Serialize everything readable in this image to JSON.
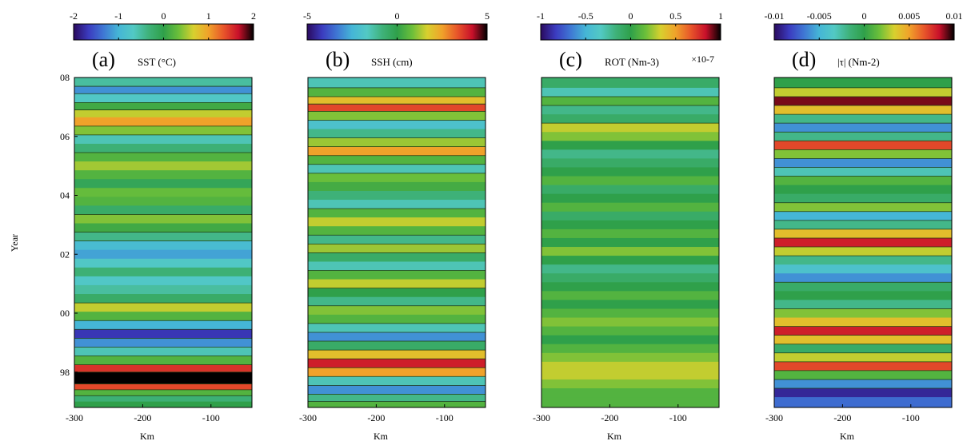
{
  "figure": {
    "ylabel": "Year",
    "xlabel": "Km"
  },
  "colormap": [
    "#2a0a5e",
    "#3b3bbf",
    "#3f78d4",
    "#45b6d6",
    "#52c9c4",
    "#3fb27a",
    "#2fa04a",
    "#6bbf3a",
    "#d8d02e",
    "#f0a22a",
    "#e8562a",
    "#c8102a",
    "#000000"
  ],
  "contour_color": "#1f3a12",
  "chart_data": [
    {
      "type": "heatmap",
      "panel_label": "(a)",
      "title": "SST (°C)",
      "colorbar": {
        "min": -2,
        "max": 2,
        "ticks": [
          "-2",
          "-1",
          "0",
          "1",
          "2"
        ],
        "tick_values": [
          -2,
          -1,
          0,
          1,
          2
        ],
        "exponent": ""
      },
      "xlim": [
        -300,
        -40
      ],
      "ylim": [
        1996.8,
        2008
      ],
      "x_ticks": [
        "-300",
        "-200",
        "-100"
      ],
      "x_tick_values": [
        -300,
        -200,
        -100
      ],
      "y_ticks": [
        "08",
        "06",
        "04",
        "02",
        "00",
        "98"
      ],
      "y_tick_values": [
        2008,
        2006,
        2004,
        2002,
        2000,
        1998
      ],
      "rows": [
        [
          2007.8,
          -0.5
        ],
        [
          2007.6,
          -1.2
        ],
        [
          2007.3,
          -0.7
        ],
        [
          2007.0,
          0.1
        ],
        [
          2006.8,
          0.6
        ],
        [
          2006.5,
          1.0
        ],
        [
          2006.2,
          0.4
        ],
        [
          2005.9,
          -0.6
        ],
        [
          2005.6,
          -0.3
        ],
        [
          2005.3,
          0.2
        ],
        [
          2005.0,
          0.5
        ],
        [
          2004.7,
          0.2
        ],
        [
          2004.4,
          -0.1
        ],
        [
          2004.1,
          0.3
        ],
        [
          2003.8,
          0.2
        ],
        [
          2003.5,
          -0.2
        ],
        [
          2003.2,
          0.4
        ],
        [
          2002.9,
          0.1
        ],
        [
          2002.6,
          -0.4
        ],
        [
          2002.3,
          -0.9
        ],
        [
          2002.0,
          -1.1
        ],
        [
          2001.7,
          -0.7
        ],
        [
          2001.4,
          -0.3
        ],
        [
          2001.1,
          -0.7
        ],
        [
          2000.8,
          -0.5
        ],
        [
          2000.5,
          -0.2
        ],
        [
          2000.2,
          0.6
        ],
        [
          1999.9,
          0.2
        ],
        [
          1999.6,
          -1.0
        ],
        [
          1999.3,
          -1.7
        ],
        [
          1999.0,
          -1.2
        ],
        [
          1998.7,
          -0.6
        ],
        [
          1998.4,
          0.2
        ],
        [
          1998.1,
          1.5
        ],
        [
          1997.9,
          2.3
        ],
        [
          1997.7,
          2.3
        ],
        [
          1997.5,
          1.4
        ],
        [
          1997.3,
          0.2
        ],
        [
          1997.1,
          -0.3
        ],
        [
          1996.9,
          0.0
        ]
      ]
    },
    {
      "type": "heatmap",
      "panel_label": "(b)",
      "title": "SSH (cm)",
      "colorbar": {
        "min": -5,
        "max": 5,
        "ticks": [
          "-5",
          "0",
          "5"
        ],
        "tick_values": [
          -5,
          0,
          5
        ],
        "exponent": ""
      },
      "xlim": [
        -300,
        -40
      ],
      "ylim": [
        1996.8,
        2008
      ],
      "x_ticks": [
        "-300",
        "-200",
        "-100"
      ],
      "x_tick_values": [
        -300,
        -200,
        -100
      ],
      "y_ticks": [],
      "y_tick_values": [],
      "rows": [
        [
          2007.8,
          -1.5
        ],
        [
          2007.5,
          0.5
        ],
        [
          2007.2,
          2.0
        ],
        [
          2007.0,
          3.5
        ],
        [
          2006.7,
          1.0
        ],
        [
          2006.4,
          -2.0
        ],
        [
          2006.1,
          -1.0
        ],
        [
          2005.8,
          1.2
        ],
        [
          2005.5,
          2.5
        ],
        [
          2005.2,
          0.5
        ],
        [
          2004.9,
          -1.5
        ],
        [
          2004.6,
          0.8
        ],
        [
          2004.3,
          0.3
        ],
        [
          2004.0,
          -0.8
        ],
        [
          2003.7,
          -1.5
        ],
        [
          2003.4,
          0.5
        ],
        [
          2003.1,
          1.5
        ],
        [
          2002.8,
          0.5
        ],
        [
          2002.5,
          -1.0
        ],
        [
          2002.2,
          1.2
        ],
        [
          2001.9,
          -0.5
        ],
        [
          2001.6,
          -1.5
        ],
        [
          2001.3,
          0.5
        ],
        [
          2001.0,
          1.5
        ],
        [
          2000.7,
          0.0
        ],
        [
          2000.4,
          -1.0
        ],
        [
          2000.1,
          1.0
        ],
        [
          1999.8,
          0.5
        ],
        [
          1999.5,
          -1.5
        ],
        [
          1999.2,
          -3.0
        ],
        [
          1998.9,
          -0.5
        ],
        [
          1998.6,
          2.0
        ],
        [
          1998.3,
          4.0
        ],
        [
          1998.0,
          2.5
        ],
        [
          1997.7,
          -1.5
        ],
        [
          1997.4,
          -3.0
        ],
        [
          1997.1,
          -1.0
        ],
        [
          1996.9,
          0.5
        ]
      ]
    },
    {
      "type": "heatmap",
      "panel_label": "(c)",
      "title": "ROT (Nm-3)",
      "colorbar": {
        "min": -1,
        "max": 1,
        "ticks": [
          "-1",
          "-0.5",
          "0",
          "0.5",
          "1"
        ],
        "tick_values": [
          -1,
          -0.5,
          0,
          0.5,
          1
        ],
        "exponent": "×10-7"
      },
      "xlim": [
        -300,
        -40
      ],
      "ylim": [
        1996.8,
        2008
      ],
      "x_ticks": [
        "-300",
        "-200",
        "-100"
      ],
      "x_tick_values": [
        -300,
        -200,
        -100
      ],
      "y_ticks": [],
      "y_tick_values": [],
      "rows": [
        [
          2007.8,
          -0.1
        ],
        [
          2007.5,
          -0.3
        ],
        [
          2007.2,
          0.1
        ],
        [
          2006.9,
          -0.2
        ],
        [
          2006.6,
          -0.1
        ],
        [
          2006.3,
          0.3
        ],
        [
          2006.0,
          0.2
        ],
        [
          2005.7,
          0.0
        ],
        [
          2005.4,
          -0.2
        ],
        [
          2005.1,
          -0.1
        ],
        [
          2004.8,
          0.0
        ],
        [
          2004.5,
          0.1
        ],
        [
          2004.2,
          -0.1
        ],
        [
          2003.9,
          0.0
        ],
        [
          2003.6,
          0.1
        ],
        [
          2003.3,
          -0.1
        ],
        [
          2003.0,
          0.0
        ],
        [
          2002.7,
          0.1
        ],
        [
          2002.4,
          0.0
        ],
        [
          2002.1,
          0.2
        ],
        [
          2001.8,
          0.0
        ],
        [
          2001.5,
          -0.2
        ],
        [
          2001.2,
          -0.1
        ],
        [
          2000.9,
          0.0
        ],
        [
          2000.6,
          0.1
        ],
        [
          2000.3,
          0.0
        ],
        [
          2000.0,
          0.1
        ],
        [
          1999.7,
          0.2
        ],
        [
          1999.4,
          0.1
        ],
        [
          1999.1,
          0.0
        ],
        [
          1998.8,
          0.1
        ],
        [
          1998.5,
          0.2
        ],
        [
          1998.2,
          0.3
        ],
        [
          1997.9,
          0.3
        ],
        [
          1997.6,
          0.2
        ],
        [
          1997.3,
          0.1
        ],
        [
          1997.0,
          0.1
        ]
      ]
    },
    {
      "type": "heatmap",
      "panel_label": "(d)",
      "title": "|τ| (Nm-2)",
      "colorbar": {
        "min": -0.01,
        "max": 0.01,
        "ticks": [
          "-0.01",
          "-0.005",
          "0",
          "0.005",
          "0.01"
        ],
        "tick_values": [
          -0.01,
          -0.005,
          0,
          0.005,
          0.01
        ],
        "exponent": ""
      },
      "xlim": [
        -300,
        -40
      ],
      "ylim": [
        1996.8,
        2008
      ],
      "x_ticks": [
        "-300",
        "-200",
        "-100"
      ],
      "x_tick_values": [
        -300,
        -200,
        -100
      ],
      "y_ticks": [],
      "y_tick_values": [],
      "rows": [
        [
          2007.8,
          0.0
        ],
        [
          2007.5,
          0.003
        ],
        [
          2007.2,
          0.009
        ],
        [
          2006.9,
          0.004
        ],
        [
          2006.6,
          -0.002
        ],
        [
          2006.3,
          -0.006
        ],
        [
          2006.0,
          -0.002
        ],
        [
          2005.7,
          0.007
        ],
        [
          2005.4,
          0.002
        ],
        [
          2005.1,
          -0.006
        ],
        [
          2004.8,
          -0.003
        ],
        [
          2004.5,
          0.001
        ],
        [
          2004.2,
          0.0
        ],
        [
          2003.9,
          -0.001
        ],
        [
          2003.6,
          0.002
        ],
        [
          2003.3,
          -0.005
        ],
        [
          2003.0,
          -0.002
        ],
        [
          2002.7,
          0.004
        ],
        [
          2002.4,
          0.008
        ],
        [
          2002.1,
          0.003
        ],
        [
          2001.8,
          -0.002
        ],
        [
          2001.5,
          -0.004
        ],
        [
          2001.2,
          -0.006
        ],
        [
          2000.9,
          -0.001
        ],
        [
          2000.6,
          0.0
        ],
        [
          2000.3,
          -0.002
        ],
        [
          2000.0,
          0.002
        ],
        [
          1999.7,
          0.004
        ],
        [
          1999.4,
          0.008
        ],
        [
          1999.1,
          0.004
        ],
        [
          1998.8,
          -0.001
        ],
        [
          1998.5,
          0.003
        ],
        [
          1998.2,
          0.007
        ],
        [
          1997.9,
          0.001
        ],
        [
          1997.6,
          -0.006
        ],
        [
          1997.3,
          -0.009
        ],
        [
          1997.0,
          -0.007
        ]
      ]
    }
  ]
}
